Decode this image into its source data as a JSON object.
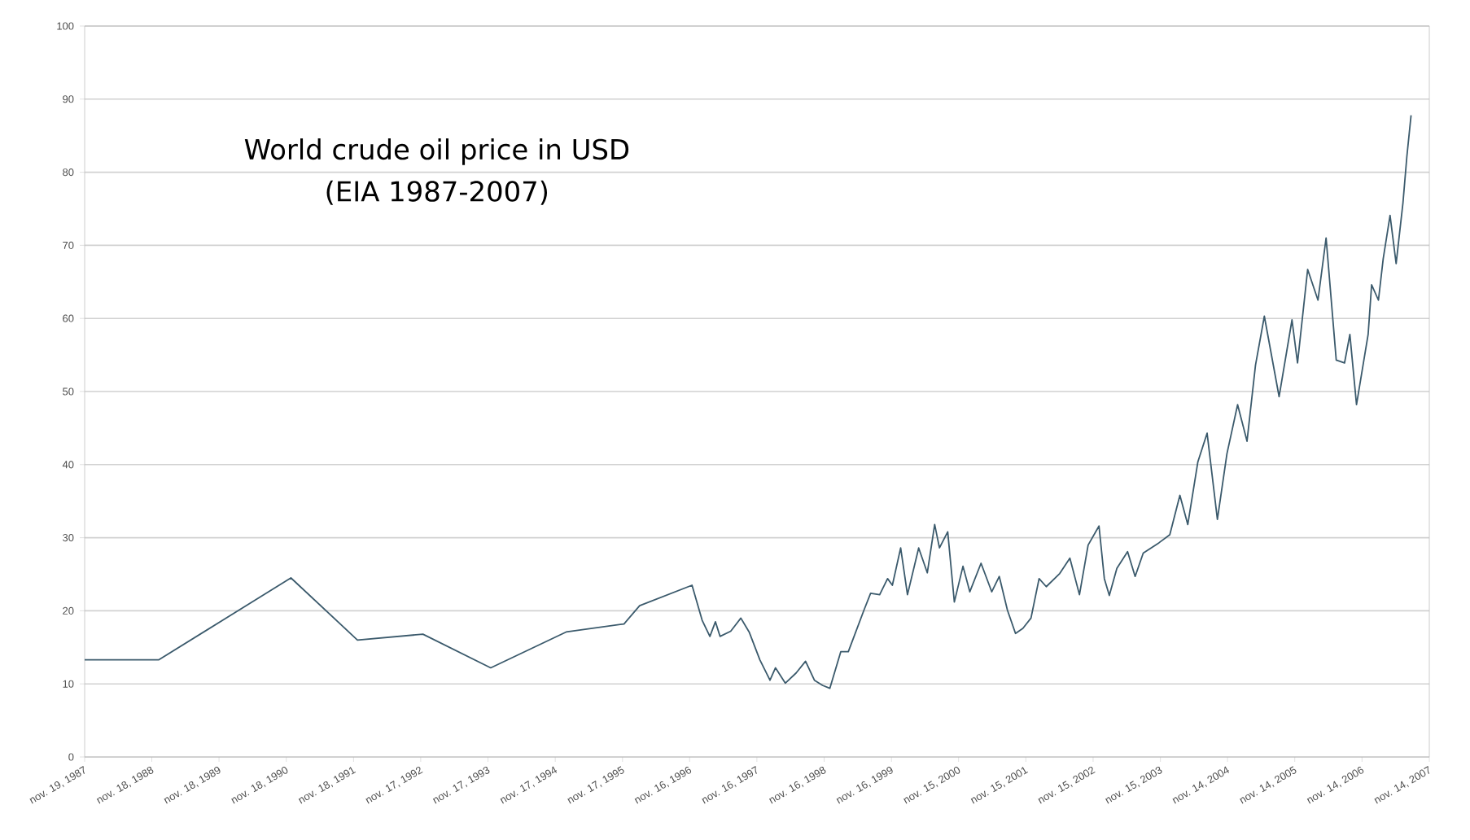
{
  "chart_data": {
    "type": "line",
    "title": "World crude oil price in USD",
    "subtitle": "(EIA 1987-2007)",
    "color": "#3b5a6c",
    "grid": "y",
    "x": [
      "1987-11-19",
      "1988-12-27",
      "1990-12-13",
      "1991-12-09",
      "1992-11-29",
      "1993-12-02",
      "1995-01-15",
      "1995-11-25",
      "1996-02-18",
      "1996-11-29",
      "1997-01-23",
      "1997-03-06",
      "1997-04-05",
      "1997-04-30",
      "1997-06-27",
      "1997-08-21",
      "1997-10-05",
      "1997-12-02",
      "1998-01-26",
      "1998-02-25",
      "1998-04-19",
      "1998-06-17",
      "1998-08-07",
      "1998-09-24",
      "1998-11-07",
      "1998-12-17",
      "1999-02-14",
      "1999-03-27",
      "1999-06-20",
      "1999-07-26",
      "1999-09-13",
      "1999-10-26",
      "1999-11-21",
      "2000-01-05",
      "2000-02-11",
      "2000-04-12",
      "2000-05-29",
      "2000-07-08",
      "2000-08-03",
      "2000-09-17",
      "2000-10-23",
      "2000-12-09",
      "2001-01-15",
      "2001-03-17",
      "2001-05-14",
      "2001-06-24",
      "2001-08-07",
      "2001-09-20",
      "2001-10-30",
      "2001-12-13",
      "2002-01-26",
      "2002-03-06",
      "2002-05-18",
      "2002-07-12",
      "2002-09-02",
      "2002-10-19",
      "2002-12-17",
      "2003-01-15",
      "2003-02-11",
      "2003-03-24",
      "2003-05-21",
      "2003-07-01",
      "2003-08-14",
      "2003-11-07",
      "2004-01-05",
      "2004-02-29",
      "2004-04-12",
      "2004-06-06",
      "2004-07-26",
      "2004-09-20",
      "2004-11-11",
      "2005-01-08",
      "2005-02-28",
      "2005-04-15",
      "2005-06-02",
      "2005-08-21",
      "2005-10-30",
      "2005-11-29",
      "2006-01-23",
      "2006-03-20",
      "2006-05-03",
      "2006-06-27",
      "2006-08-11",
      "2006-09-09",
      "2006-10-15",
      "2006-12-17",
      "2007-01-05",
      "2007-02-11",
      "2007-03-09",
      "2007-04-15",
      "2007-05-18",
      "2007-06-24",
      "2007-07-15",
      "2007-08-07"
    ],
    "values": [
      13.3,
      13.3,
      24.5,
      16.0,
      16.8,
      12.2,
      17.1,
      18.2,
      20.7,
      23.5,
      18.7,
      16.5,
      18.5,
      16.5,
      17.2,
      19.0,
      17.1,
      13.3,
      10.5,
      12.2,
      10.1,
      11.5,
      13.1,
      10.5,
      9.8,
      9.4,
      14.4,
      14.4,
      20.1,
      22.4,
      22.2,
      24.4,
      23.5,
      28.6,
      22.2,
      28.6,
      25.2,
      31.8,
      28.6,
      30.8,
      21.2,
      26.1,
      22.6,
      26.5,
      22.6,
      24.7,
      20.1,
      16.9,
      17.6,
      19.0,
      24.4,
      23.3,
      25.1,
      27.2,
      22.2,
      29.0,
      31.6,
      24.4,
      22.1,
      25.8,
      28.1,
      24.7,
      27.9,
      29.3,
      30.4,
      35.8,
      31.8,
      40.4,
      44.3,
      32.5,
      41.5,
      48.2,
      43.2,
      53.6,
      60.3,
      49.3,
      59.8,
      53.9,
      66.7,
      62.5,
      71.0,
      54.3,
      53.9,
      57.8,
      48.2,
      57.8,
      64.6,
      62.5,
      68.2,
      74.1,
      67.5,
      75.8,
      82.1,
      87.8
    ],
    "xlim": [
      "1987-11-19",
      "2007-11-14"
    ],
    "ylim": [
      0,
      100
    ],
    "yticks": [
      0,
      10,
      20,
      30,
      40,
      50,
      60,
      70,
      80,
      90,
      100
    ],
    "xticks": [
      {
        "value": "1987-11-19",
        "label": "nov. 19, 1987"
      },
      {
        "value": "1988-11-18",
        "label": "nov. 18, 1988"
      },
      {
        "value": "1989-11-18",
        "label": "nov. 18, 1989"
      },
      {
        "value": "1990-11-18",
        "label": "nov. 18, 1990"
      },
      {
        "value": "1991-11-18",
        "label": "nov. 18, 1991"
      },
      {
        "value": "1992-11-17",
        "label": "nov. 17, 1992"
      },
      {
        "value": "1993-11-17",
        "label": "nov. 17, 1993"
      },
      {
        "value": "1994-11-17",
        "label": "nov. 17, 1994"
      },
      {
        "value": "1995-11-17",
        "label": "nov. 17, 1995"
      },
      {
        "value": "1996-11-16",
        "label": "nov. 16, 1996"
      },
      {
        "value": "1997-11-16",
        "label": "nov. 16, 1997"
      },
      {
        "value": "1998-11-16",
        "label": "nov. 16, 1998"
      },
      {
        "value": "1999-11-16",
        "label": "nov. 16, 1999"
      },
      {
        "value": "2000-11-15",
        "label": "nov. 15, 2000"
      },
      {
        "value": "2001-11-15",
        "label": "nov. 15, 2001"
      },
      {
        "value": "2002-11-15",
        "label": "nov. 15, 2002"
      },
      {
        "value": "2003-11-15",
        "label": "nov. 15, 2003"
      },
      {
        "value": "2004-11-14",
        "label": "nov. 14, 2004"
      },
      {
        "value": "2005-11-14",
        "label": "nov. 14, 2005"
      },
      {
        "value": "2006-11-14",
        "label": "nov. 14, 2006"
      },
      {
        "value": "2007-11-14",
        "label": "nov. 14, 2007"
      }
    ]
  }
}
